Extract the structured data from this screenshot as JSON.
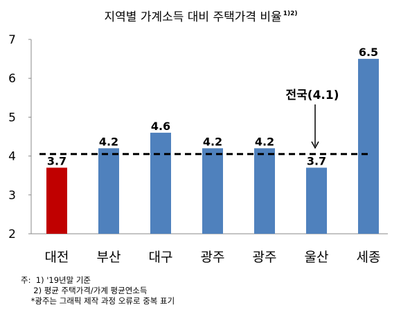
{
  "chart_data": {
    "type": "bar",
    "title": "지역별 가계소득 대비 주택가격 비율",
    "title_superscript": "1)2)",
    "categories": [
      "대전",
      "부산",
      "대구",
      "광주",
      "광주",
      "울산",
      "세종"
    ],
    "values": [
      3.7,
      4.2,
      4.6,
      4.2,
      4.2,
      3.7,
      6.5
    ],
    "data_labels": [
      "3.7",
      "4.2",
      "4.6",
      "4.2",
      "4.2",
      "3.7",
      "6.5"
    ],
    "ylim": [
      2,
      7
    ],
    "yticks": [
      "2",
      "3",
      "4",
      "5",
      "6",
      "7"
    ],
    "bar_colors": [
      "#C00000",
      "#4F81BD",
      "#4F81BD",
      "#4F81BD",
      "#4F81BD",
      "#4F81BD",
      "#4F81BD"
    ],
    "reference_line": {
      "value": 4.05,
      "style": "dashed",
      "color": "#000000"
    },
    "annotation": {
      "text": "전국(4.1)",
      "points_to": "reference_line"
    },
    "grid": false,
    "legend": "none"
  },
  "notes": [
    "주:  1) '19년말 기준",
    "     2) 평균 주택가격/가계 평균연소득",
    "    *광주는 그래픽 제작 과정 오류로 중복 표기"
  ]
}
